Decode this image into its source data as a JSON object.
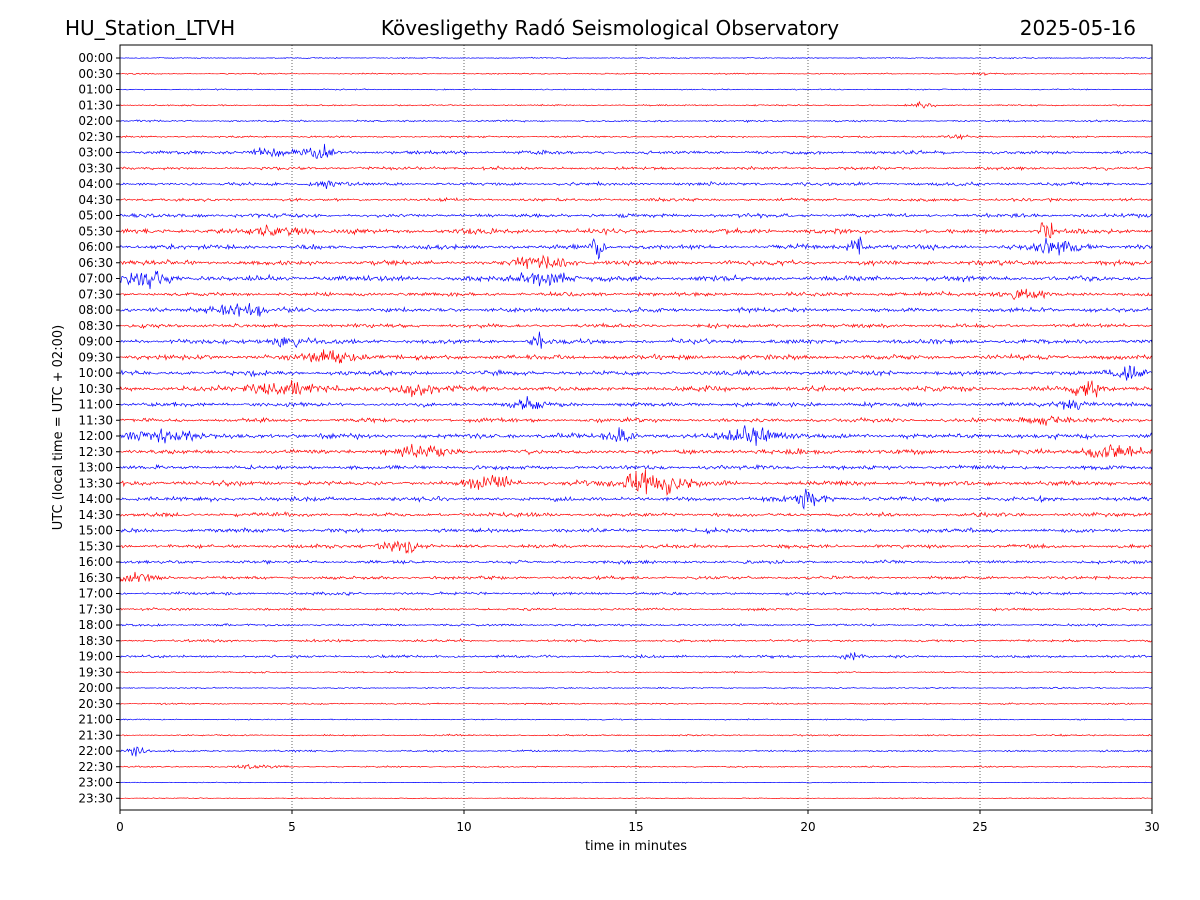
{
  "header": {
    "station": "HU_Station_LTVH",
    "observatory": "Kövesligethy Radó Seismological Observatory",
    "date": "2025-05-16"
  },
  "chart_data": {
    "type": "line",
    "title": "Kövesligethy Radó Seismological Observatory",
    "xlabel": "time in minutes",
    "ylabel": "UTC (local time = UTC + 02:00)",
    "xlim": [
      0,
      30
    ],
    "x_ticks": [
      0,
      5,
      10,
      15,
      20,
      25,
      30
    ],
    "grid": {
      "vertical_dotted_at": [
        5,
        10,
        15,
        20,
        25
      ]
    },
    "colors": {
      "odd_trace": "#0000ff",
      "even_trace": "#ff0000"
    },
    "rows": [
      "00:00",
      "00:30",
      "01:00",
      "01:30",
      "02:00",
      "02:30",
      "03:00",
      "03:30",
      "04:00",
      "04:30",
      "05:00",
      "05:30",
      "06:00",
      "06:30",
      "07:00",
      "07:30",
      "08:00",
      "08:30",
      "09:00",
      "09:30",
      "10:00",
      "10:30",
      "11:00",
      "11:30",
      "12:00",
      "12:30",
      "13:00",
      "13:30",
      "14:00",
      "14:30",
      "15:00",
      "15:30",
      "16:00",
      "16:30",
      "17:00",
      "17:30",
      "18:00",
      "18:30",
      "19:00",
      "19:30",
      "20:00",
      "20:30",
      "21:00",
      "21:30",
      "22:00",
      "22:30",
      "23:00",
      "23:30"
    ],
    "noise_level": [
      0.4,
      0.4,
      0.4,
      0.5,
      0.6,
      0.6,
      1.2,
      1.0,
      1.1,
      1.0,
      1.3,
      1.6,
      1.6,
      1.5,
      1.7,
      1.3,
      1.4,
      1.3,
      1.5,
      1.6,
      1.6,
      1.7,
      1.4,
      1.3,
      1.6,
      1.5,
      1.4,
      1.6,
      1.5,
      1.3,
      1.3,
      1.2,
      1.1,
      1.1,
      1.0,
      0.8,
      0.8,
      0.8,
      0.9,
      0.5,
      0.5,
      0.5,
      0.4,
      0.5,
      0.6,
      0.5,
      0.3,
      0.3
    ],
    "events": [
      {
        "row": 6,
        "t": 4.3,
        "amp": 5,
        "dur": 0.6
      },
      {
        "row": 6,
        "t": 5.7,
        "amp": 5,
        "dur": 0.8
      },
      {
        "row": 8,
        "t": 5.9,
        "amp": 4,
        "dur": 0.5
      },
      {
        "row": 11,
        "t": 4.6,
        "amp": 5,
        "dur": 1.2
      },
      {
        "row": 11,
        "t": 26.9,
        "amp": 10,
        "dur": 0.3
      },
      {
        "row": 12,
        "t": 13.9,
        "amp": 10,
        "dur": 0.3
      },
      {
        "row": 12,
        "t": 21.4,
        "amp": 9,
        "dur": 0.3
      },
      {
        "row": 12,
        "t": 27.3,
        "amp": 6,
        "dur": 1.0
      },
      {
        "row": 13,
        "t": 12.3,
        "amp": 5,
        "dur": 1.2
      },
      {
        "row": 14,
        "t": 0.6,
        "amp": 7,
        "dur": 1.1
      },
      {
        "row": 14,
        "t": 12.3,
        "amp": 6,
        "dur": 1.0
      },
      {
        "row": 15,
        "t": 26.2,
        "amp": 4,
        "dur": 1.0
      },
      {
        "row": 16,
        "t": 3.4,
        "amp": 6,
        "dur": 1.2
      },
      {
        "row": 18,
        "t": 5.0,
        "amp": 4,
        "dur": 1.0
      },
      {
        "row": 18,
        "t": 12.2,
        "amp": 7,
        "dur": 0.3
      },
      {
        "row": 19,
        "t": 6.2,
        "amp": 5,
        "dur": 1.2
      },
      {
        "row": 21,
        "t": 4.9,
        "amp": 8,
        "dur": 1.2
      },
      {
        "row": 21,
        "t": 8.6,
        "amp": 5,
        "dur": 1.0
      },
      {
        "row": 21,
        "t": 28.1,
        "amp": 8,
        "dur": 0.6
      },
      {
        "row": 22,
        "t": 11.8,
        "amp": 4,
        "dur": 0.6
      },
      {
        "row": 22,
        "t": 27.7,
        "amp": 5,
        "dur": 0.6
      },
      {
        "row": 24,
        "t": 1.2,
        "amp": 5,
        "dur": 1.5
      },
      {
        "row": 24,
        "t": 14.5,
        "amp": 5,
        "dur": 0.6
      },
      {
        "row": 24,
        "t": 18.4,
        "amp": 7,
        "dur": 1.2
      },
      {
        "row": 25,
        "t": 8.7,
        "amp": 5,
        "dur": 1.2
      },
      {
        "row": 25,
        "t": 28.8,
        "amp": 6,
        "dur": 1.2
      },
      {
        "row": 27,
        "t": 15.4,
        "amp": 10,
        "dur": 1.4
      },
      {
        "row": 27,
        "t": 10.8,
        "amp": 5,
        "dur": 1.0
      },
      {
        "row": 28,
        "t": 20.0,
        "amp": 7,
        "dur": 0.6
      },
      {
        "row": 31,
        "t": 8.1,
        "amp": 7,
        "dur": 0.8
      },
      {
        "row": 33,
        "t": 0.5,
        "amp": 5,
        "dur": 0.8
      },
      {
        "row": 38,
        "t": 21.2,
        "amp": 3,
        "dur": 0.5
      },
      {
        "row": 44,
        "t": 0.4,
        "amp": 4,
        "dur": 0.5
      },
      {
        "row": 45,
        "t": 4.0,
        "amp": 2,
        "dur": 0.8
      },
      {
        "row": 1,
        "t": 25.0,
        "amp": 1,
        "dur": 0.5
      },
      {
        "row": 3,
        "t": 23.3,
        "amp": 2,
        "dur": 0.5
      },
      {
        "row": 5,
        "t": 24.2,
        "amp": 2,
        "dur": 0.5
      },
      {
        "row": 20,
        "t": 29.4,
        "amp": 5,
        "dur": 0.8
      },
      {
        "row": 23,
        "t": 27.0,
        "amp": 4,
        "dur": 1.0
      }
    ]
  }
}
